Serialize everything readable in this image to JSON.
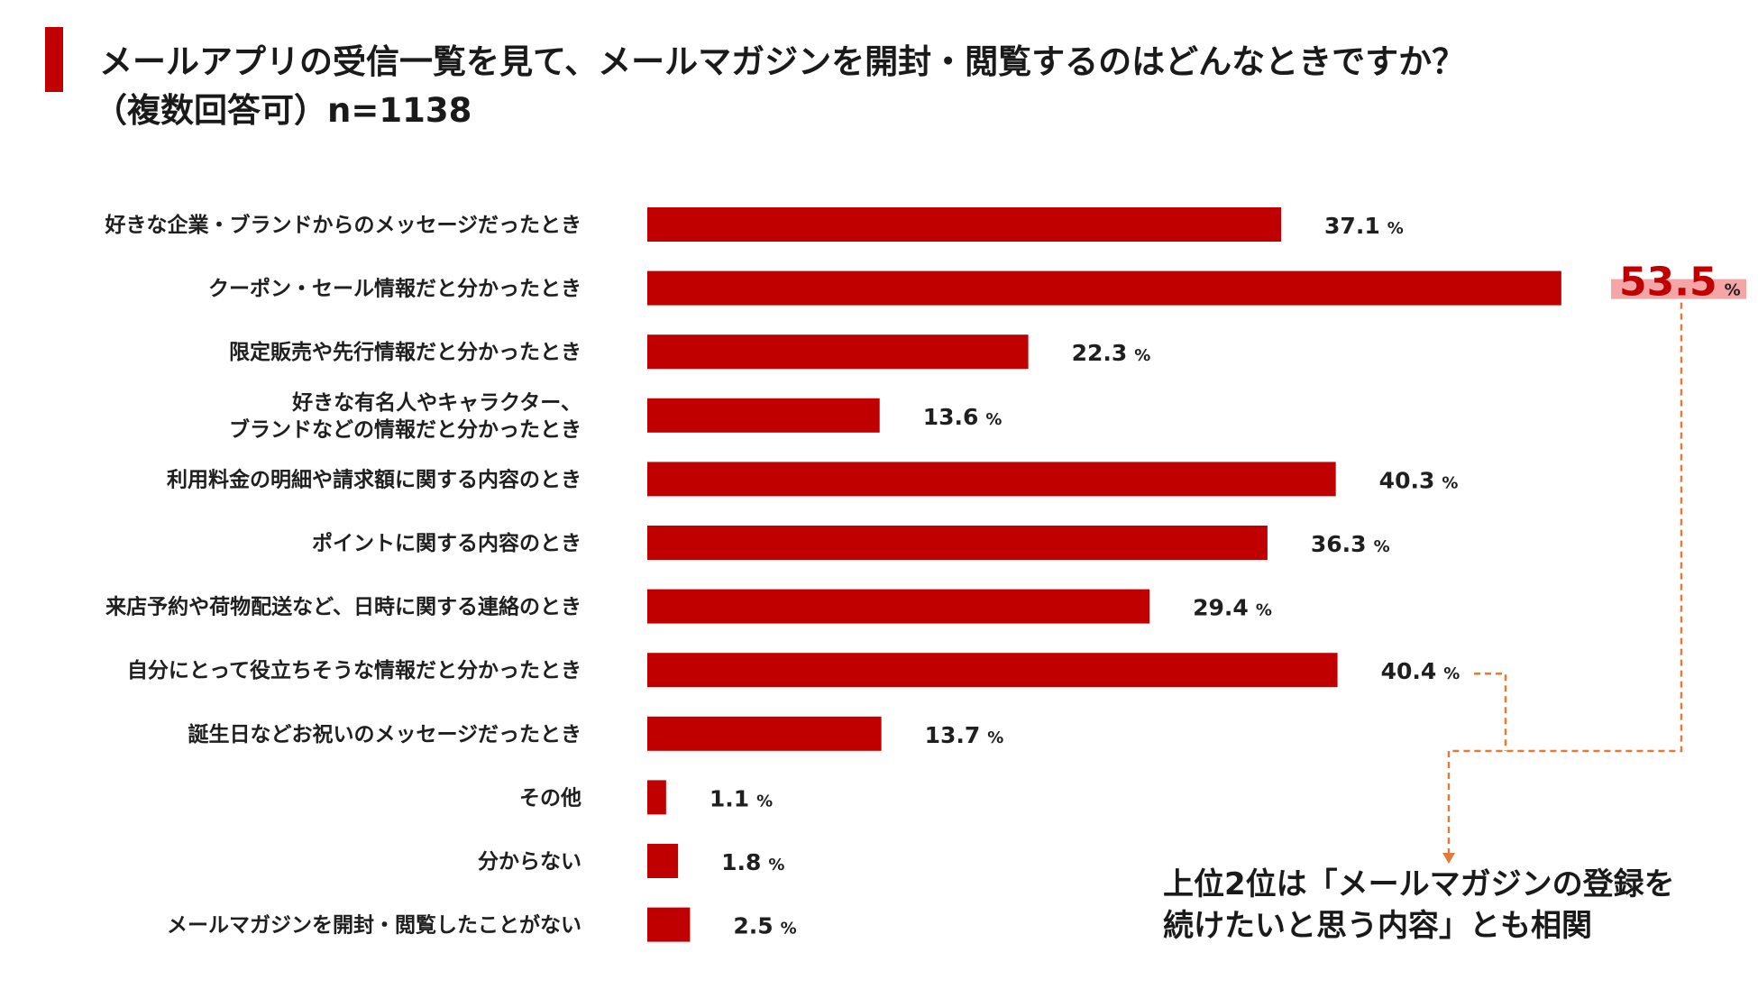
{
  "title": {
    "line1": "メールアプリの受信一覧を見て、メールマガジンを開封・閲覧するのはどんなときですか？",
    "line2": "（複数回答可）n=1138"
  },
  "colors": {
    "bar": "#c00000",
    "accent_text": "#c00000",
    "highlight": "#f4a6a6",
    "connector": "#e07b39"
  },
  "chart_data": {
    "type": "bar",
    "orientation": "horizontal",
    "unit": "%",
    "categories": [
      [
        "好きな企業・ブランドからのメッセージだったとき"
      ],
      [
        "クーポン・セール情報だと分かったとき"
      ],
      [
        "限定販売や先行情報だと分かったとき"
      ],
      [
        "好きな有名人やキャラクター、",
        "ブランドなどの情報だと分かったとき"
      ],
      [
        "利用料金の明細や請求額に関する内容のとき"
      ],
      [
        "ポイントに関する内容のとき"
      ],
      [
        "来店予約や荷物配送など、日時に関する連絡のとき"
      ],
      [
        "自分にとって役立ちそうな情報だと分かったとき"
      ],
      [
        "誕生日などお祝いのメッセージだったとき"
      ],
      [
        "その他"
      ],
      [
        "分からない"
      ],
      [
        "メールマガジンを開封・閲覧したことがない"
      ]
    ],
    "values": [
      37.1,
      53.5,
      22.3,
      13.6,
      40.3,
      36.3,
      29.4,
      40.4,
      13.7,
      1.1,
      1.8,
      2.5
    ],
    "value_labels": [
      "37.1",
      "53.5",
      "22.3",
      "13.6",
      "40.3",
      "36.3",
      "29.4",
      "40.4",
      "13.7",
      "1.1",
      "1.8",
      "2.5"
    ],
    "highlighted_index": 1,
    "linked_index": 7
  },
  "callout": {
    "line1": "上位2位は「メールマガジンの登録を",
    "line2": "続けたいと思う内容」とも相関"
  }
}
